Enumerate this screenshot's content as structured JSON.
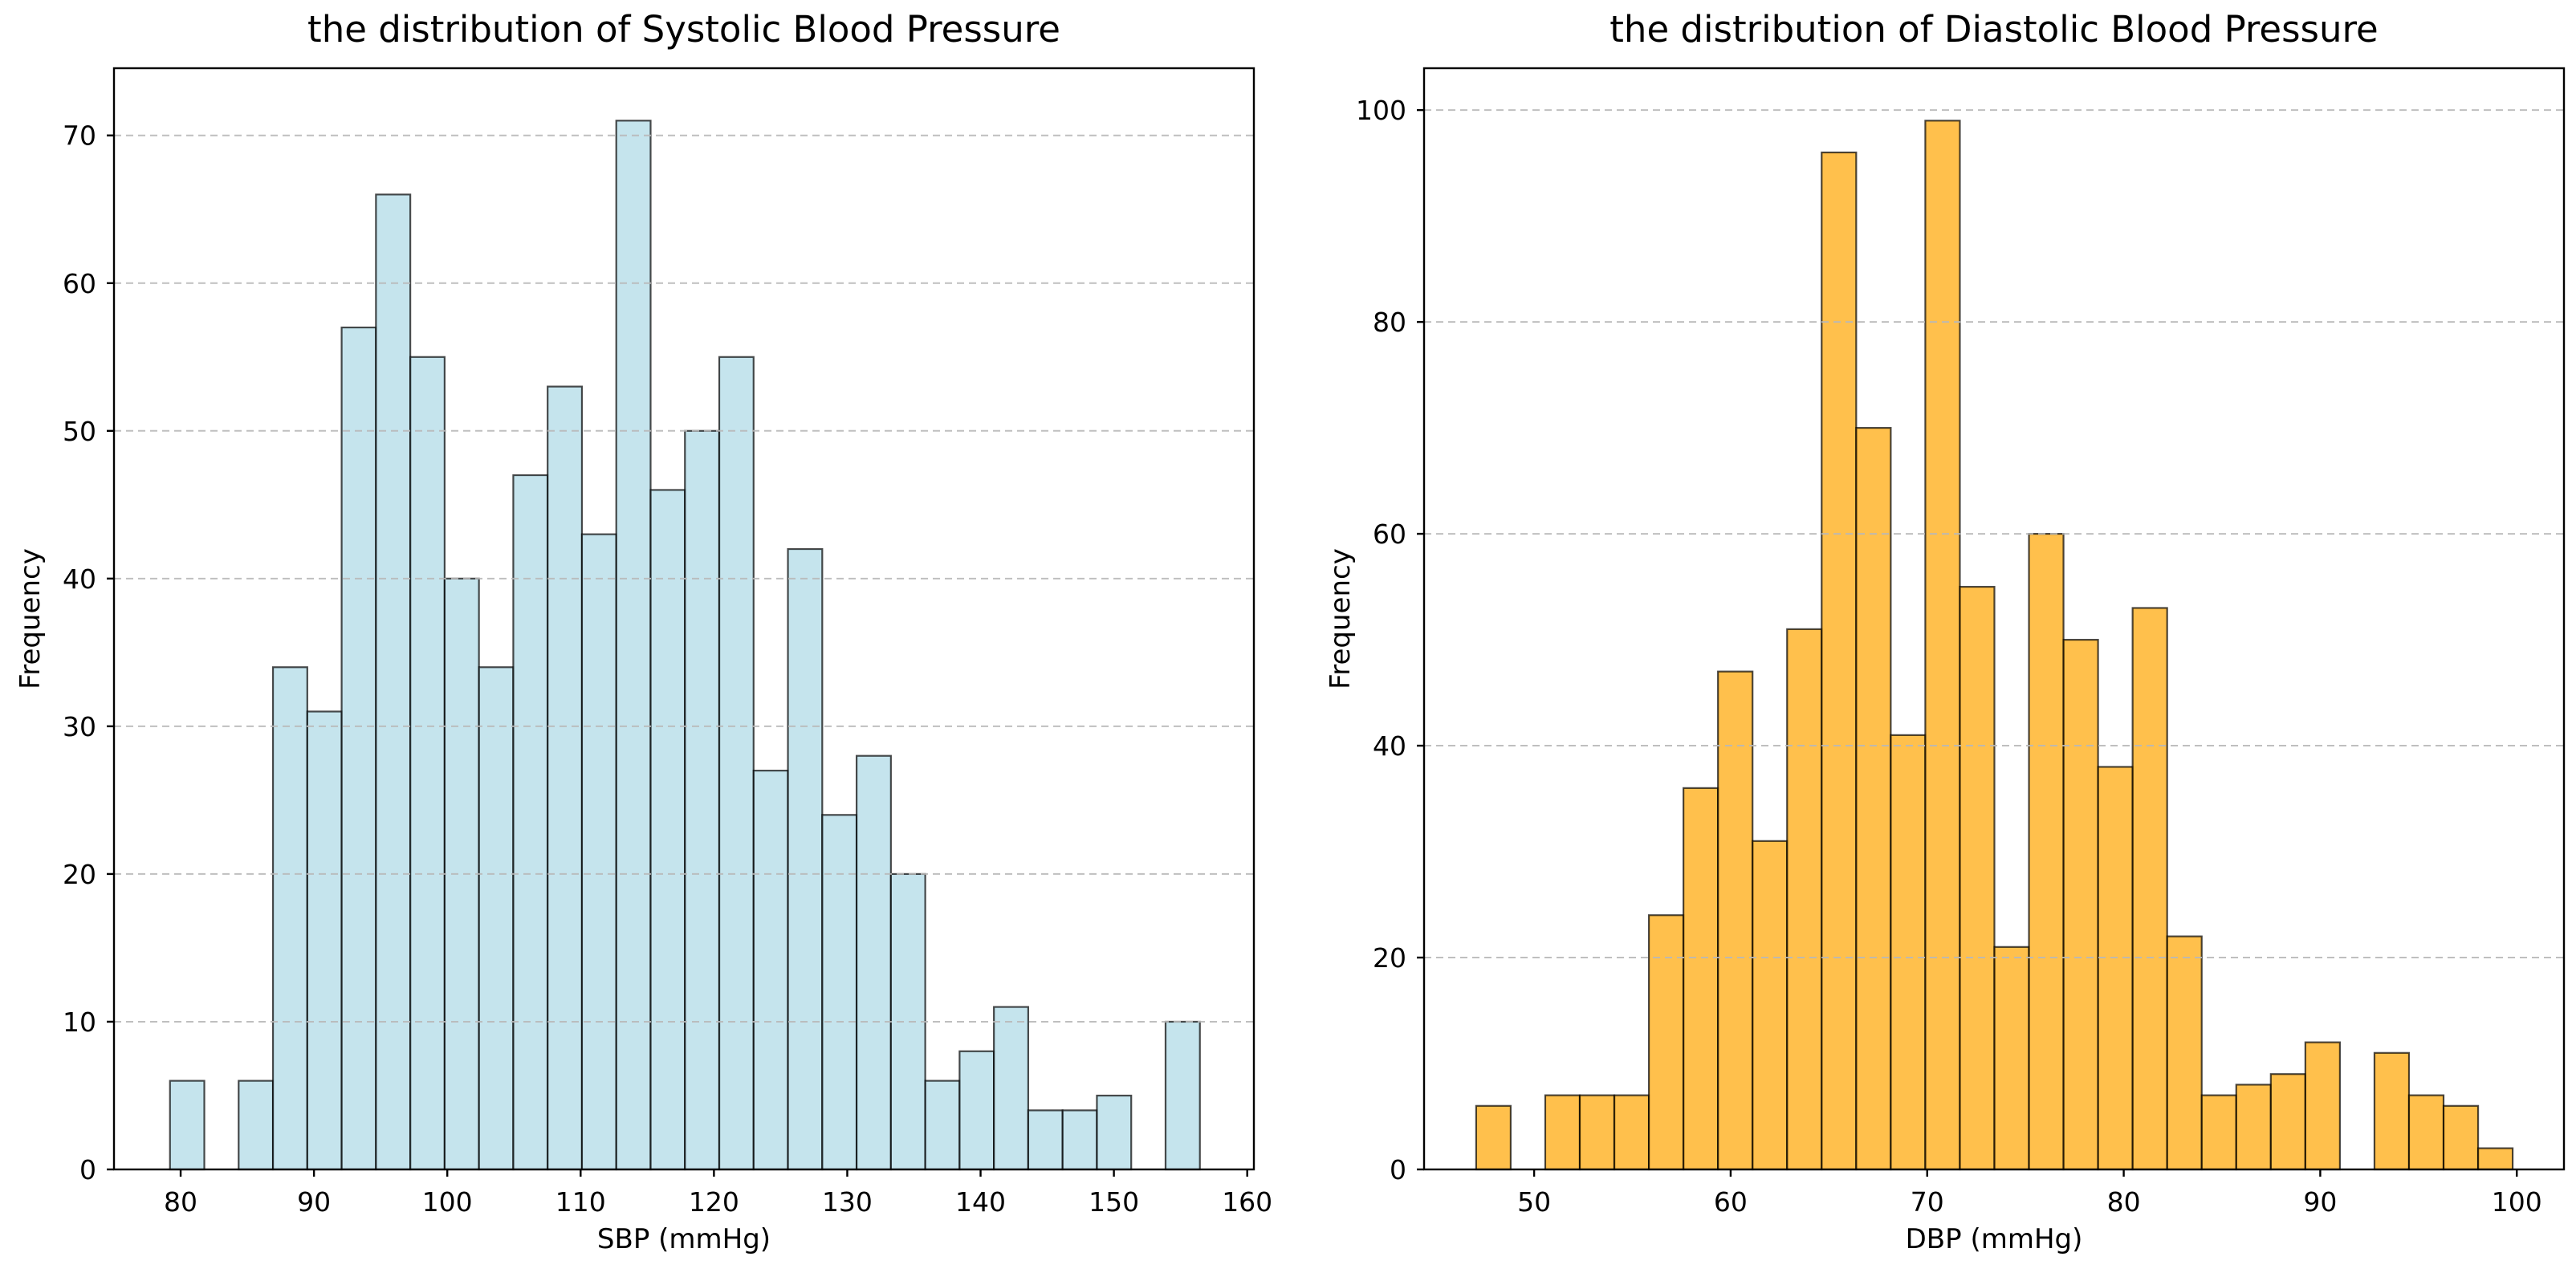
{
  "figure": {
    "background": "#ffffff",
    "grid_color": "#b8b8b8",
    "spine_color": "#000000",
    "tick_color": "#000000"
  },
  "chart_data": [
    {
      "type": "bar",
      "subtype": "histogram",
      "title": "the distribution of Systolic Blood Pressure",
      "xlabel": "SBP (mmHg)",
      "ylabel": "Frequency",
      "bar_color": "#ADD8E6",
      "bar_edge_color": "#000000",
      "bar_alpha": 0.7,
      "bin_start": 79.2,
      "bin_width": 2.575,
      "values": [
        6,
        0,
        6,
        34,
        31,
        57,
        66,
        55,
        40,
        34,
        47,
        53,
        43,
        71,
        46,
        50,
        55,
        27,
        42,
        24,
        28,
        20,
        6,
        8,
        11,
        4,
        4,
        5,
        0,
        10
      ],
      "xticks": [
        80,
        90,
        100,
        110,
        120,
        130,
        140,
        150,
        160
      ],
      "yticks": [
        0,
        10,
        20,
        30,
        40,
        50,
        60,
        70
      ],
      "xlim": [
        75.0,
        160.5
      ],
      "ylim": [
        0,
        74.55
      ],
      "grid": "y-dashed",
      "legend": "none"
    },
    {
      "type": "bar",
      "subtype": "histogram",
      "title": "the distribution of Diastolic Blood Pressure",
      "xlabel": "DBP (mmHg)",
      "ylabel": "Frequency",
      "bar_color": "#FFA500",
      "bar_edge_color": "#000000",
      "bar_alpha": 0.7,
      "bin_start": 47.05,
      "bin_width": 1.758,
      "values": [
        6,
        0,
        7,
        7,
        7,
        24,
        36,
        47,
        31,
        51,
        96,
        70,
        41,
        99,
        55,
        21,
        60,
        50,
        38,
        53,
        22,
        7,
        8,
        9,
        12,
        0,
        11,
        7,
        6,
        2
      ],
      "xticks": [
        50,
        60,
        70,
        80,
        90,
        100
      ],
      "yticks": [
        0,
        20,
        40,
        60,
        80,
        100
      ],
      "xlim": [
        44.4,
        102.4
      ],
      "ylim": [
        0,
        103.95
      ],
      "grid": "y-dashed",
      "legend": "none"
    }
  ]
}
